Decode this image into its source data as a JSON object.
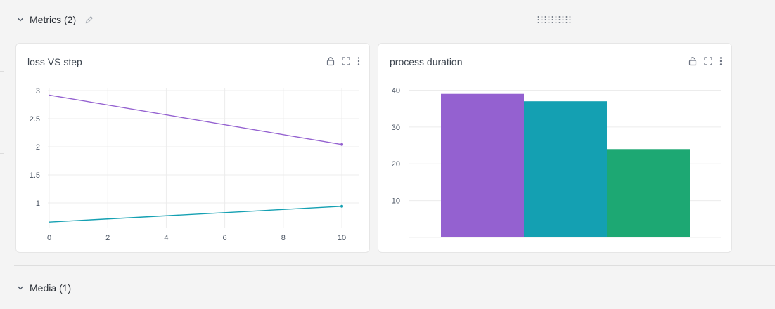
{
  "sections": {
    "metrics": {
      "label": "Metrics (2)"
    },
    "media": {
      "label": "Media (1)"
    }
  },
  "icons": {
    "chevron": "chevron-down-icon",
    "edit": "pencil-icon",
    "lock": "lock-icon",
    "expand": "fullscreen-icon",
    "more": "more-vertical-icon",
    "drag": "drag-handle-icon"
  },
  "colors": {
    "purple": "#9461d0",
    "teal": "#14a0b2",
    "green": "#1da873",
    "grid": "#ececec"
  },
  "charts": [
    {
      "title": "loss VS step"
    },
    {
      "title": "process duration"
    }
  ],
  "chart_data": [
    {
      "type": "line",
      "title": "loss VS step",
      "xlabel": "",
      "ylabel": "",
      "xlim": [
        0,
        10.6
      ],
      "ylim": [
        0.55,
        3.05
      ],
      "x_ticks": [
        0,
        2,
        4,
        6,
        8,
        10
      ],
      "y_ticks": [
        1,
        1.5,
        2,
        2.5,
        3
      ],
      "x_tick_labels": [
        "0",
        "2",
        "4",
        "6",
        "8",
        "10"
      ],
      "y_tick_labels": [
        "1",
        "1.5",
        "2",
        "2.5",
        "3"
      ],
      "grid": true,
      "series": [
        {
          "color": "#9461d0",
          "x": [
            0,
            10
          ],
          "y": [
            2.92,
            2.04
          ]
        },
        {
          "color": "#14a0b2",
          "x": [
            0,
            10
          ],
          "y": [
            0.66,
            0.94
          ]
        }
      ]
    },
    {
      "type": "bar",
      "title": "process duration",
      "xlabel": "",
      "ylabel": "",
      "ylim": [
        0,
        42
      ],
      "y_ticks": [
        10,
        20,
        30,
        40
      ],
      "y_tick_labels": [
        "10",
        "20",
        "30",
        "40"
      ],
      "grid": true,
      "bars": [
        {
          "value": 39,
          "color": "#9461d0"
        },
        {
          "value": 37,
          "color": "#14a0b2"
        },
        {
          "value": 24,
          "color": "#1da873"
        }
      ]
    }
  ]
}
